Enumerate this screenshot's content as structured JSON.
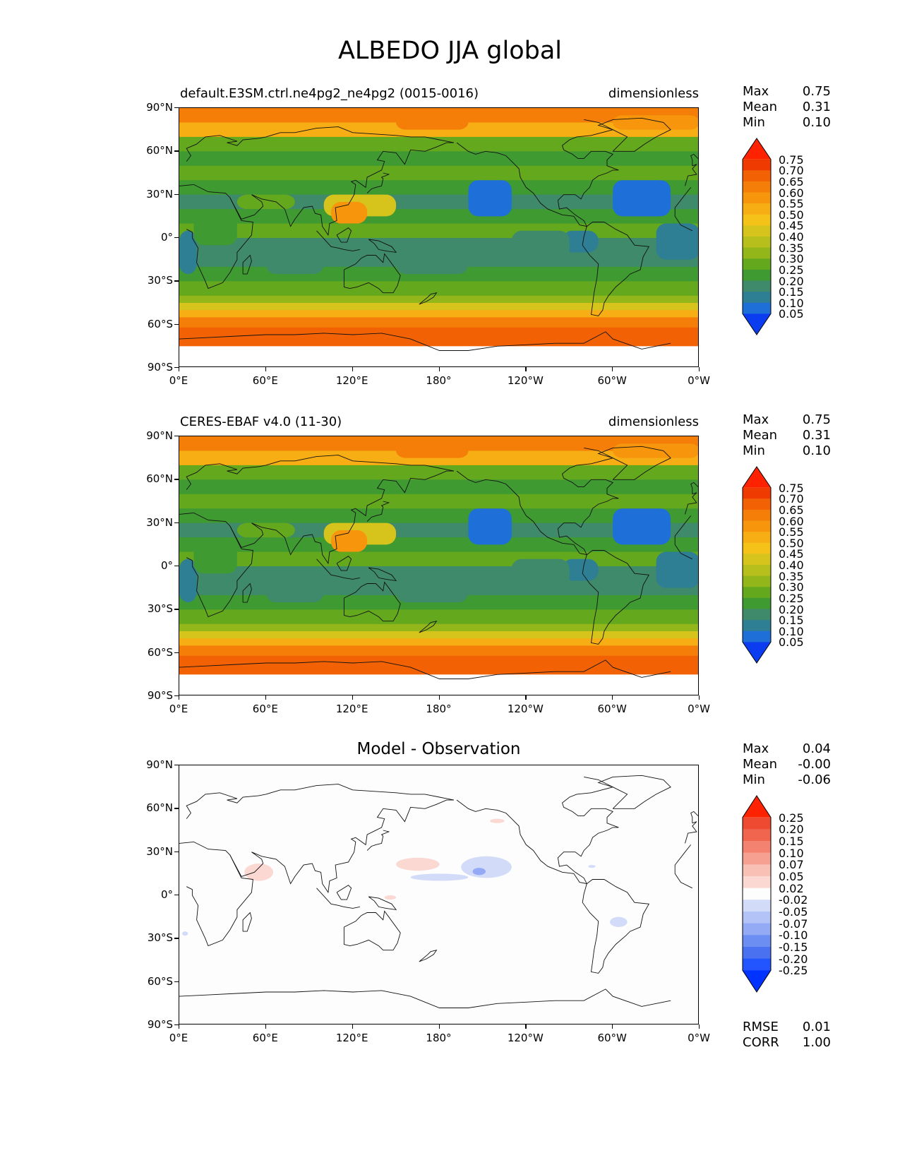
{
  "title": "ALBEDO JJA global",
  "panels": [
    {
      "id": "model",
      "left_title": "default.E3SM.ctrl.ne4pg2_ne4pg2 (0015-0016)",
      "center_title": "",
      "right_title": "dimensionless",
      "stats": {
        "max_label": "Max",
        "max": "0.75",
        "mean_label": "Mean",
        "mean": "0.31",
        "min_label": "Min",
        "min": "0.10"
      },
      "colorbar_labels": [
        "0.75",
        "0.70",
        "0.65",
        "0.60",
        "0.55",
        "0.50",
        "0.45",
        "0.40",
        "0.35",
        "0.30",
        "0.25",
        "0.20",
        "0.15",
        "0.10",
        "0.05"
      ]
    },
    {
      "id": "obs",
      "left_title": "CERES-EBAF v4.0 (11-30)",
      "center_title": "",
      "right_title": "dimensionless",
      "stats": {
        "max_label": "Max",
        "max": "0.75",
        "mean_label": "Mean",
        "mean": "0.31",
        "min_label": "Min",
        "min": "0.10"
      },
      "colorbar_labels": [
        "0.75",
        "0.70",
        "0.65",
        "0.60",
        "0.55",
        "0.50",
        "0.45",
        "0.40",
        "0.35",
        "0.30",
        "0.25",
        "0.20",
        "0.15",
        "0.10",
        "0.05"
      ]
    },
    {
      "id": "diff",
      "left_title": "",
      "center_title": "Model - Observation",
      "right_title": "",
      "stats": {
        "max_label": "Max",
        "max": "0.04",
        "mean_label": "Mean",
        "mean": "-0.00",
        "min_label": "Min",
        "min": "-0.06"
      },
      "colorbar_labels": [
        "0.25",
        "0.20",
        "0.15",
        "0.10",
        "0.07",
        "0.05",
        "0.02",
        "-0.02",
        "-0.05",
        "-0.07",
        "-0.10",
        "-0.15",
        "-0.20",
        "-0.25"
      ],
      "extra_stats": {
        "rmse_label": "RMSE",
        "rmse": "0.01",
        "corr_label": "CORR",
        "corr": "1.00"
      }
    }
  ],
  "lat_ticks": [
    "90°N",
    "60°N",
    "30°N",
    "0°",
    "30°S",
    "60°S",
    "90°S"
  ],
  "lon_ticks": [
    "0°E",
    "60°E",
    "120°E",
    "180°",
    "120°W",
    "60°W",
    "0°W"
  ],
  "colors": {
    "albedo_scale": [
      "#0b3cf0",
      "#1f6fd8",
      "#2e7f93",
      "#3e8a6a",
      "#3f9a32",
      "#64a81e",
      "#93b61a",
      "#b7bf1c",
      "#d6c41c",
      "#f5c21a",
      "#f7ad14",
      "#f7960d",
      "#f57e08",
      "#f26205",
      "#ef3a02",
      "#ff2200"
    ],
    "diff_scale": [
      "#0033ff",
      "#2255ff",
      "#4a72f0",
      "#6c8ef3",
      "#94aaf5",
      "#b3c3f7",
      "#d2dcf9",
      "#fdfdfd",
      "#fbd8d2",
      "#f9c0b6",
      "#f6a092",
      "#f48270",
      "#f1654f",
      "#ee4a32",
      "#ff2200"
    ]
  }
}
